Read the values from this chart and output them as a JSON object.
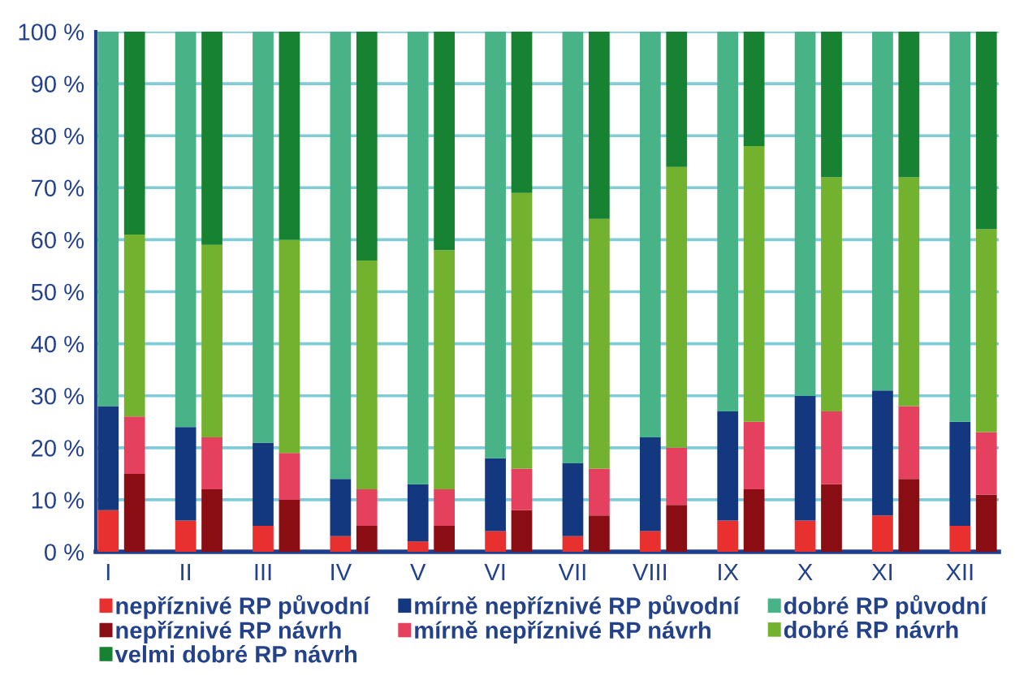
{
  "chart_data": {
    "type": "bar",
    "stacked": true,
    "categories": [
      "I",
      null,
      "II",
      null,
      "III",
      null,
      "IV",
      null,
      "V",
      null,
      "VI",
      null,
      "VII",
      null,
      "VIII",
      null,
      "IX",
      null,
      "X",
      null,
      "XI",
      null,
      "XII",
      null
    ],
    "series": [
      {
        "name": "nepříznivé RP původní",
        "color": "#e8312f",
        "values": [
          8,
          null,
          6,
          null,
          5,
          null,
          3,
          null,
          2,
          null,
          4,
          null,
          3,
          null,
          4,
          null,
          6,
          null,
          6,
          null,
          7,
          null,
          5,
          null
        ]
      },
      {
        "name": "mírně nepříznivé RP původní",
        "color": "#13387f",
        "values": [
          20,
          null,
          18,
          null,
          16,
          null,
          11,
          null,
          11,
          null,
          14,
          null,
          14,
          null,
          18,
          null,
          21,
          null,
          24,
          null,
          24,
          null,
          20,
          null
        ]
      },
      {
        "name": "dobré RP původní",
        "color": "#47b386",
        "values": [
          72,
          null,
          76,
          null,
          79,
          null,
          86,
          null,
          87,
          null,
          82,
          null,
          83,
          null,
          78,
          null,
          73,
          null,
          70,
          null,
          69,
          null,
          75,
          null
        ]
      },
      {
        "name": "nepříznivé RP návrh",
        "color": "#8b0d14",
        "values": [
          null,
          15,
          null,
          12,
          null,
          10,
          null,
          5,
          null,
          5,
          null,
          8,
          null,
          7,
          null,
          9,
          null,
          12,
          null,
          13,
          null,
          14,
          null,
          11
        ]
      },
      {
        "name": "mírně nepříznivé RP návrh",
        "color": "#e5405e",
        "values": [
          null,
          11,
          null,
          10,
          null,
          9,
          null,
          7,
          null,
          7,
          null,
          8,
          null,
          9,
          null,
          11,
          null,
          13,
          null,
          14,
          null,
          14,
          null,
          12
        ]
      },
      {
        "name": "dobré RP návrh",
        "color": "#72b22f",
        "values": [
          null,
          35,
          null,
          37,
          null,
          41,
          null,
          44,
          null,
          46,
          null,
          53,
          null,
          48,
          null,
          54,
          null,
          53,
          null,
          45,
          null,
          44,
          null,
          39
        ]
      },
      {
        "name": "velmi dobré RP návrh",
        "color": "#178232",
        "values": [
          null,
          39,
          null,
          41,
          null,
          40,
          null,
          44,
          null,
          42,
          null,
          31,
          null,
          36,
          null,
          26,
          null,
          22,
          null,
          28,
          null,
          28,
          null,
          38
        ]
      }
    ],
    "ylim": [
      0,
      100
    ],
    "yticks": [
      {
        "value": 0,
        "label": "0 %"
      },
      {
        "value": 10,
        "label": "10 %"
      },
      {
        "value": 20,
        "label": "20 %"
      },
      {
        "value": 30,
        "label": "30 %"
      },
      {
        "value": 40,
        "label": "40 %"
      },
      {
        "value": 50,
        "label": "50 %"
      },
      {
        "value": 60,
        "label": "60 %"
      },
      {
        "value": 70,
        "label": "70 %"
      },
      {
        "value": 80,
        "label": "80 %"
      },
      {
        "value": 90,
        "label": "90 %"
      },
      {
        "value": 100,
        "label": "100 %"
      }
    ],
    "grid": "y",
    "legend": "bottom"
  }
}
